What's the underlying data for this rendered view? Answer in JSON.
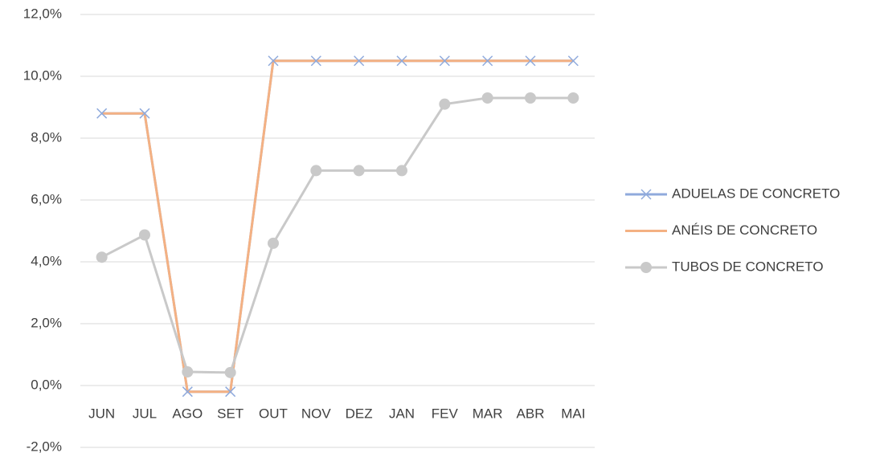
{
  "chart_data": {
    "type": "line",
    "categories": [
      "JUN",
      "JUL",
      "AGO",
      "SET",
      "OUT",
      "NOV",
      "DEZ",
      "JAN",
      "FEV",
      "MAR",
      "ABR",
      "MAI"
    ],
    "series": [
      {
        "name": "ADUELAS DE CONCRETO",
        "color": "#8faadc",
        "marker": "x",
        "values": [
          8.8,
          8.8,
          -0.2,
          -0.2,
          10.5,
          10.5,
          10.5,
          10.5,
          10.5,
          10.5,
          10.5,
          10.5
        ]
      },
      {
        "name": "ANÉIS DE CONCRETO",
        "color": "#f4b183",
        "marker": "none",
        "values": [
          8.8,
          8.8,
          -0.2,
          -0.2,
          10.5,
          10.5,
          10.5,
          10.5,
          10.5,
          10.5,
          10.5,
          10.5
        ]
      },
      {
        "name": "TUBOS DE CONCRETO",
        "color": "#c9c9c9",
        "marker": "circle",
        "values": [
          4.15,
          4.87,
          0.44,
          0.42,
          4.6,
          6.95,
          6.95,
          6.95,
          9.1,
          9.3,
          9.3,
          9.3
        ]
      }
    ],
    "ylim": [
      -2,
      12
    ],
    "yticks": [
      {
        "value": -2,
        "label": "-2,0%"
      },
      {
        "value": 0,
        "label": "0,0%"
      },
      {
        "value": 2,
        "label": "2,0%"
      },
      {
        "value": 4,
        "label": "4,0%"
      },
      {
        "value": 6,
        "label": "6,0%"
      },
      {
        "value": 8,
        "label": "8,0%"
      },
      {
        "value": 10,
        "label": "10,0%"
      },
      {
        "value": 12,
        "label": "12,0%"
      }
    ],
    "grid": true,
    "legend": "right"
  }
}
